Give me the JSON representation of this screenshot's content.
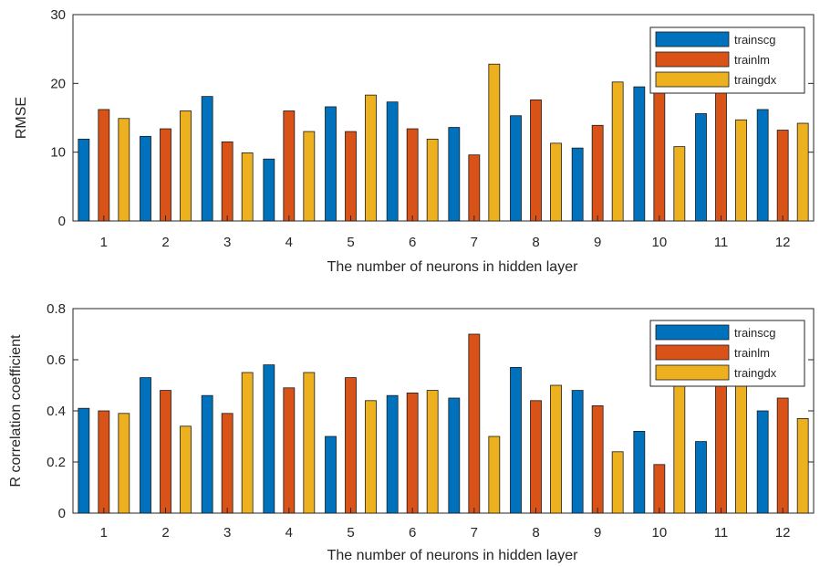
{
  "chart_data": [
    {
      "type": "bar",
      "title": "",
      "xlabel": "The number of neurons in hidden layer",
      "ylabel": "RMSE",
      "ylim": [
        0,
        30
      ],
      "yticks": [
        0,
        10,
        20,
        30
      ],
      "categories": [
        "1",
        "2",
        "3",
        "4",
        "5",
        "6",
        "7",
        "8",
        "9",
        "10",
        "11",
        "12"
      ],
      "series": [
        {
          "name": "trainscg",
          "color": "#0072BD",
          "values": [
            11.9,
            12.3,
            18.1,
            9.0,
            16.6,
            17.3,
            13.6,
            15.3,
            10.6,
            19.5,
            15.6,
            16.2
          ]
        },
        {
          "name": "trainlm",
          "color": "#D95319",
          "values": [
            16.2,
            13.4,
            11.5,
            16.0,
            13.0,
            13.4,
            9.6,
            17.6,
            13.9,
            22.0,
            21.0,
            13.2
          ]
        },
        {
          "name": "traingdx",
          "color": "#EDB120",
          "values": [
            14.9,
            16.0,
            9.9,
            13.0,
            18.3,
            11.9,
            22.8,
            11.3,
            20.2,
            10.8,
            14.7,
            14.2
          ]
        }
      ],
      "legend": "top-right",
      "grid": false
    },
    {
      "type": "bar",
      "title": "",
      "xlabel": "The number of neurons in hidden layer",
      "ylabel": "R correlation coefficient",
      "ylim": [
        0,
        0.8
      ],
      "yticks": [
        0,
        0.2,
        0.4,
        0.6,
        0.8
      ],
      "categories": [
        "1",
        "2",
        "3",
        "4",
        "5",
        "6",
        "7",
        "8",
        "9",
        "10",
        "11",
        "12"
      ],
      "series": [
        {
          "name": "trainscg",
          "color": "#0072BD",
          "values": [
            0.41,
            0.53,
            0.46,
            0.58,
            0.3,
            0.46,
            0.45,
            0.57,
            0.48,
            0.32,
            0.28,
            0.4
          ]
        },
        {
          "name": "trainlm",
          "color": "#D95319",
          "values": [
            0.4,
            0.48,
            0.39,
            0.49,
            0.53,
            0.47,
            0.7,
            0.44,
            0.42,
            0.19,
            0.6,
            0.45
          ]
        },
        {
          "name": "traingdx",
          "color": "#EDB120",
          "values": [
            0.39,
            0.34,
            0.55,
            0.55,
            0.44,
            0.48,
            0.3,
            0.5,
            0.24,
            0.55,
            0.6,
            0.37
          ]
        }
      ],
      "legend": "top-right",
      "grid": false
    }
  ]
}
